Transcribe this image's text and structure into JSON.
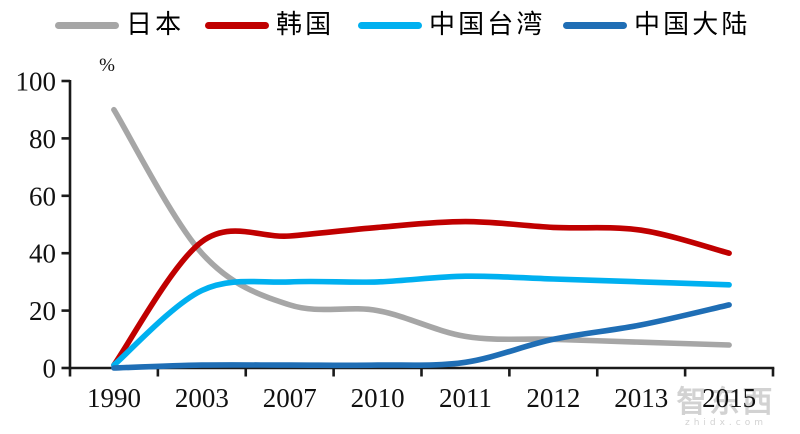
{
  "chart_data": {
    "type": "line",
    "title": "",
    "unit_label": "%",
    "xlabel": "",
    "ylabel": "%",
    "ylim": [
      0,
      100
    ],
    "yticks": [
      0,
      20,
      40,
      60,
      80,
      100
    ],
    "grid": false,
    "smooth": true,
    "legend_position": "top",
    "categories": [
      "1990",
      "2003",
      "2007",
      "2010",
      "2011",
      "2012",
      "2013",
      "2015"
    ],
    "series": [
      {
        "name": "日本",
        "color": "#a6a6a6",
        "values": [
          90,
          40,
          22,
          20,
          11,
          10,
          9,
          8
        ]
      },
      {
        "name": "韩国",
        "color": "#c00000",
        "values": [
          1,
          44,
          46,
          49,
          51,
          49,
          48,
          40
        ]
      },
      {
        "name": "中国台湾",
        "color": "#00b0f0",
        "values": [
          1,
          27,
          30,
          30,
          32,
          31,
          30,
          29
        ]
      },
      {
        "name": "中国大陆",
        "color": "#1f6eb5",
        "values": [
          0,
          1,
          1,
          1,
          2,
          10,
          15,
          22
        ]
      }
    ],
    "axis_color": "#1a1a1a",
    "text_color": "#111111"
  },
  "watermark": {
    "logo_text": "智东西",
    "sub_text": "zhidx.com"
  }
}
